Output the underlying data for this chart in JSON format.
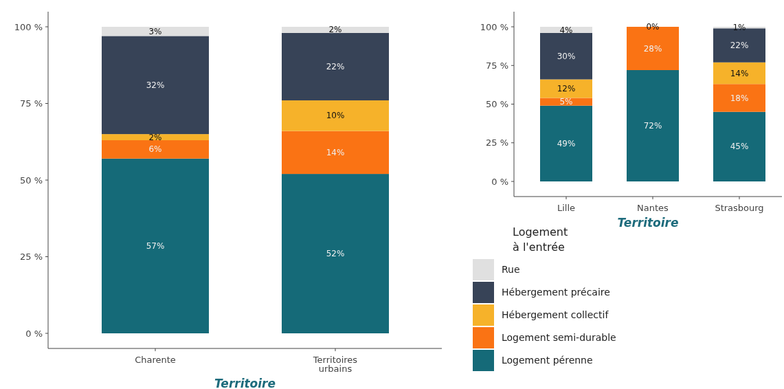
{
  "chart_data": [
    {
      "type": "bar",
      "stacked": true,
      "xlabel": "Territoire",
      "categories": [
        "Charente",
        "Territoires urbains"
      ],
      "ylim": [
        0,
        100
      ],
      "yticks": [
        {
          "value": 0,
          "label": "0 %"
        },
        {
          "value": 25,
          "label": "25 %"
        },
        {
          "value": 50,
          "label": "50 %"
        },
        {
          "value": 75,
          "label": "75 %"
        },
        {
          "value": 100,
          "label": "100 %"
        }
      ],
      "legend": false,
      "series": [
        {
          "color": "#156a78",
          "values": [
            57,
            52
          ],
          "value_labels": [
            "57%",
            "52%"
          ]
        },
        {
          "color": "#fa7314",
          "values": [
            6,
            14
          ],
          "value_labels": [
            "6%",
            "14%"
          ]
        },
        {
          "color": "#f6b22a",
          "values": [
            2,
            10
          ],
          "value_labels": [
            "2%",
            "10%"
          ]
        },
        {
          "color": "#374357",
          "values": [
            32,
            22
          ],
          "value_labels": [
            "32%",
            "22%"
          ]
        },
        {
          "color": "#e0e0e0",
          "values": [
            3,
            2
          ],
          "value_labels": [
            "3%",
            "2%"
          ]
        }
      ]
    },
    {
      "type": "bar",
      "stacked": true,
      "xlabel": "Territoire",
      "categories": [
        "Lille",
        "Nantes",
        "Strasbourg"
      ],
      "ylim": [
        0,
        100
      ],
      "yticks": [
        {
          "value": 0,
          "label": "0 %"
        },
        {
          "value": 25,
          "label": "25 %"
        },
        {
          "value": 50,
          "label": "50 %"
        },
        {
          "value": 75,
          "label": "75 %"
        },
        {
          "value": 100,
          "label": "100 %"
        }
      ],
      "legend": "bottom",
      "legend_title": "Logement\nà l'entrée",
      "series": [
        {
          "name": "Logement pérenne",
          "color": "#156a78",
          "values": [
            49,
            72,
            45
          ],
          "value_labels": [
            "49%",
            "72%",
            "45%"
          ]
        },
        {
          "name": "Logement semi-durable",
          "color": "#fa7314",
          "values": [
            5,
            28,
            18
          ],
          "value_labels": [
            "5%",
            "28%",
            "18%"
          ]
        },
        {
          "name": "Hébergement collectif",
          "color": "#f6b22a",
          "values": [
            12,
            null,
            14
          ],
          "value_labels": [
            "12%",
            null,
            "14%"
          ]
        },
        {
          "name": "Hébergement précaire",
          "color": "#374357",
          "values": [
            30,
            null,
            22
          ],
          "value_labels": [
            "30%",
            null,
            "22%"
          ]
        },
        {
          "name": "Rue",
          "color": "#e0e0e0",
          "values": [
            4,
            0,
            1
          ],
          "value_labels": [
            "4%",
            "0%",
            "1%"
          ]
        }
      ]
    }
  ]
}
